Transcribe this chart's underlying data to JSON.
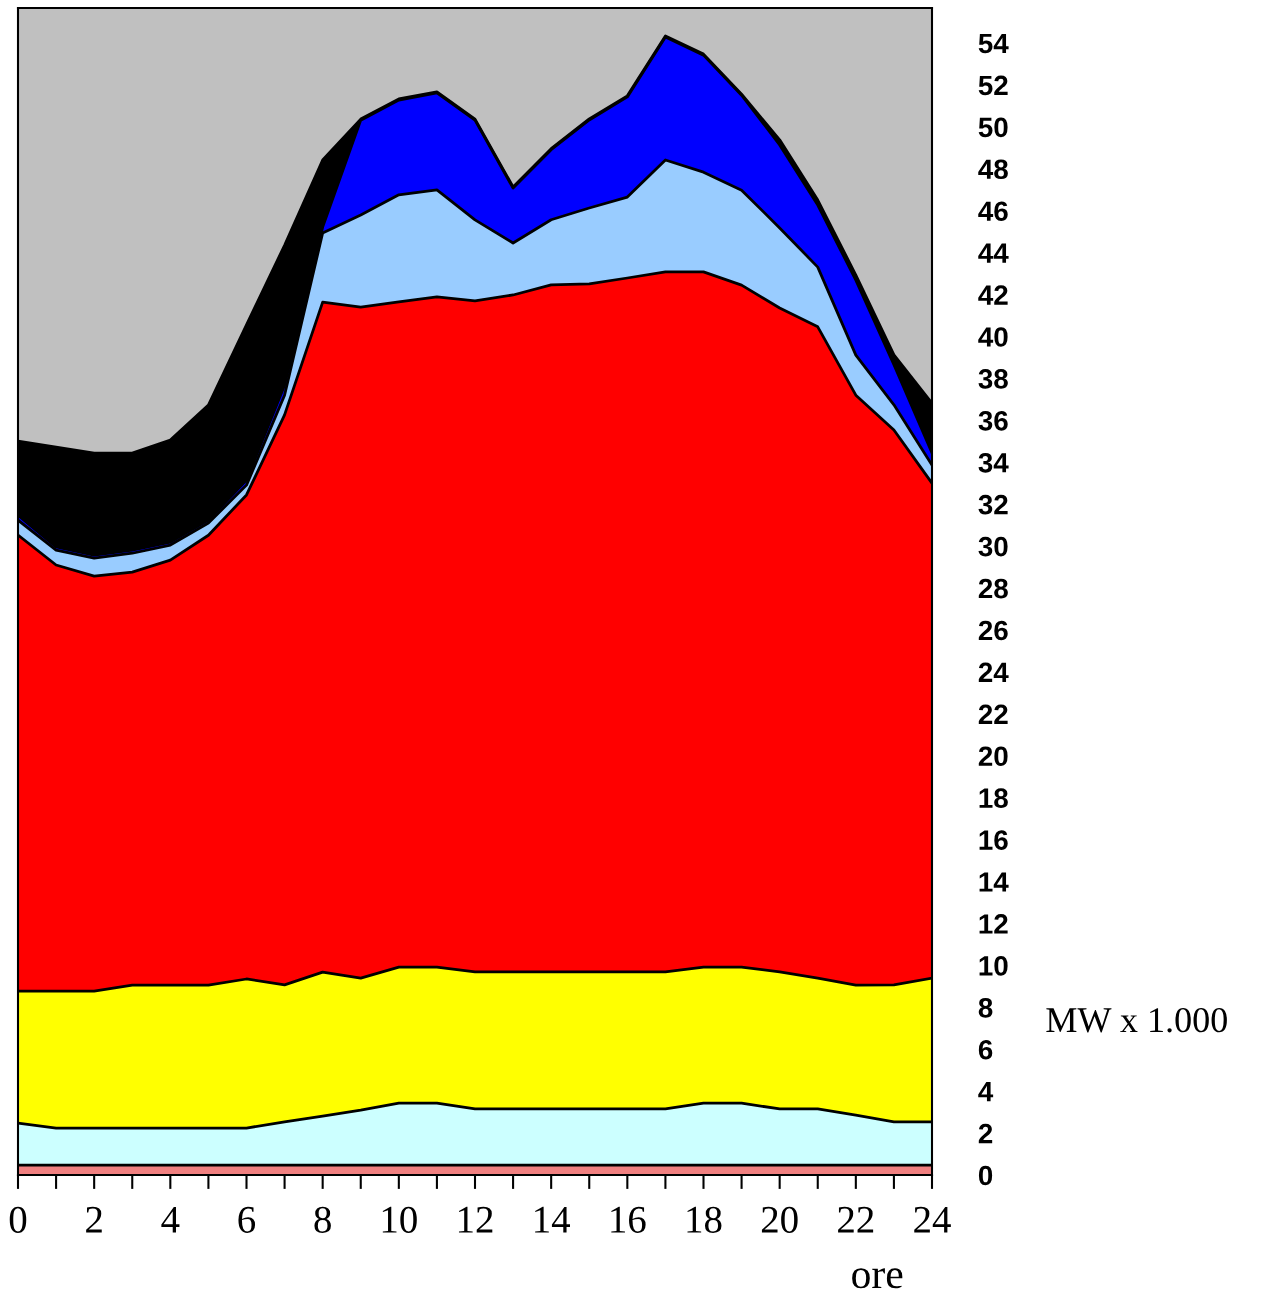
{
  "chart_data": {
    "type": "area",
    "stacked": true,
    "xlabel": "ore",
    "ylabel": "MW x 1.000",
    "x": [
      0,
      1,
      2,
      3,
      4,
      5,
      6,
      7,
      8,
      9,
      10,
      11,
      12,
      13,
      14,
      15,
      16,
      17,
      18,
      19,
      20,
      21,
      22,
      23,
      24
    ],
    "xlim": [
      0,
      24
    ],
    "xticks": [
      0,
      {
        "value": 1,
        "label": null
      },
      2,
      {
        "value": 3,
        "label": null
      },
      4,
      {
        "value": 5,
        "label": null
      },
      6,
      {
        "value": 7,
        "label": null
      },
      8,
      {
        "value": 9,
        "label": null
      },
      10,
      {
        "value": 11,
        "label": null
      },
      12,
      {
        "value": 13,
        "label": null
      },
      14,
      {
        "value": 15,
        "label": null
      },
      16,
      {
        "value": 17,
        "label": null
      },
      18,
      {
        "value": 19,
        "label": null
      },
      20,
      {
        "value": 21,
        "label": null
      },
      22,
      {
        "value": 23,
        "label": null
      },
      24
    ],
    "ylim": [
      0,
      55.67
    ],
    "yticks": [
      0,
      2,
      4,
      6,
      8,
      10,
      12,
      14,
      16,
      18,
      20,
      22,
      24,
      26,
      28,
      30,
      32,
      34,
      36,
      38,
      40,
      42,
      44,
      46,
      48,
      50,
      52,
      54
    ],
    "grid": false,
    "legend": false,
    "series": [
      {
        "color": "#f08080",
        "values": [
          0.47,
          0.47,
          0.47,
          0.47,
          0.47,
          0.47,
          0.47,
          0.47,
          0.47,
          0.47,
          0.47,
          0.47,
          0.47,
          0.47,
          0.47,
          0.47,
          0.47,
          0.47,
          0.47,
          0.47,
          0.47,
          0.47,
          0.47,
          0.47,
          0.47
        ]
      },
      {
        "color": "#ccffff",
        "values": [
          2.0,
          1.77,
          1.77,
          1.77,
          1.77,
          1.77,
          1.77,
          2.06,
          2.34,
          2.62,
          2.96,
          2.96,
          2.68,
          2.68,
          2.68,
          2.68,
          2.68,
          2.68,
          2.96,
          2.96,
          2.68,
          2.68,
          2.39,
          2.06,
          2.06
        ]
      },
      {
        "color": "#ffff00",
        "values": [
          6.3,
          6.53,
          6.53,
          6.82,
          6.82,
          6.82,
          7.11,
          6.54,
          6.87,
          6.3,
          6.49,
          6.49,
          6.54,
          6.54,
          6.54,
          6.54,
          6.54,
          6.54,
          6.49,
          6.49,
          6.54,
          6.24,
          6.2,
          6.54,
          6.86
        ]
      },
      {
        "color": "#ff0000",
        "values": [
          21.76,
          20.33,
          19.8,
          19.7,
          20.27,
          21.46,
          23.09,
          27.19,
          31.96,
          32.01,
          31.73,
          31.97,
          32.01,
          32.29,
          32.77,
          32.82,
          33.1,
          33.39,
          33.16,
          32.53,
          31.67,
          31.07,
          28.14,
          26.47,
          23.61
        ]
      },
      {
        "color": "#99ccff",
        "values": [
          0.71,
          0.71,
          0.86,
          0.9,
          0.72,
          0.58,
          0.47,
          0.94,
          3.3,
          4.4,
          5.11,
          5.1,
          3.86,
          2.48,
          3.11,
          3.62,
          3.86,
          5.34,
          4.76,
          4.53,
          3.82,
          2.85,
          1.91,
          1.2,
          0.86
        ]
      },
      {
        "color": "#0000ff",
        "values": [
          0.24,
          0.15,
          0.14,
          0.15,
          0.14,
          0.14,
          0.24,
          0.48,
          0.28,
          4.52,
          4.52,
          4.63,
          4.76,
          2.62,
          3.34,
          4.2,
          4.78,
          5.87,
          5.58,
          4.53,
          3.96,
          2.96,
          3.58,
          1.91,
          0.58
        ]
      },
      {
        "color": "#000000",
        "values": [
          3.53,
          4.76,
          4.87,
          4.63,
          4.87,
          5.49,
          7.4,
          6.67,
          3.2,
          0.05,
          0.05,
          0.05,
          0.05,
          0.05,
          0.05,
          0.05,
          0.05,
          0.05,
          0.05,
          0.05,
          0.24,
          0.24,
          0.24,
          0.47,
          2.38
        ]
      }
    ]
  }
}
